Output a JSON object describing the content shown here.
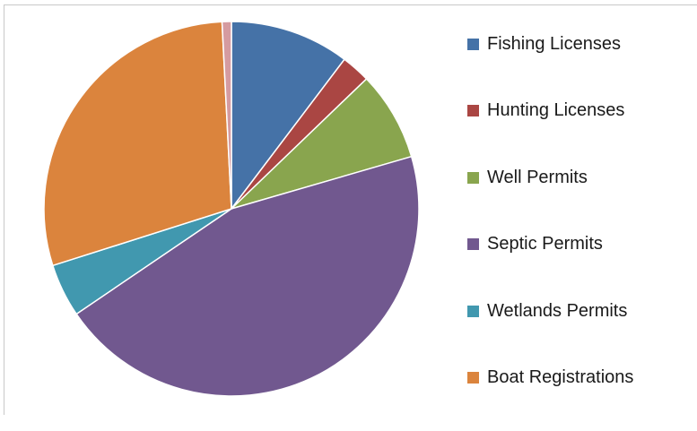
{
  "chart_data": {
    "type": "pie",
    "title": "",
    "categories": [
      "Fishing Licenses",
      "Hunting Licenses",
      "Well Permits",
      "Septic Permits",
      "Wetlands Permits",
      "Boat Registrations",
      ""
    ],
    "values": [
      10.3,
      2.5,
      7.7,
      45.0,
      4.6,
      29.1,
      0.8
    ],
    "colors": [
      "#4572a7",
      "#aa4643",
      "#89a54e",
      "#71588f",
      "#4198af",
      "#db843d",
      "#d59ba0"
    ],
    "legend": {
      "position": "right",
      "entries": [
        "Fishing Licenses",
        "Hunting Licenses",
        "Well Permits",
        "Septic Permits",
        "Wetlands Permits",
        "Boat Registrations"
      ]
    }
  }
}
